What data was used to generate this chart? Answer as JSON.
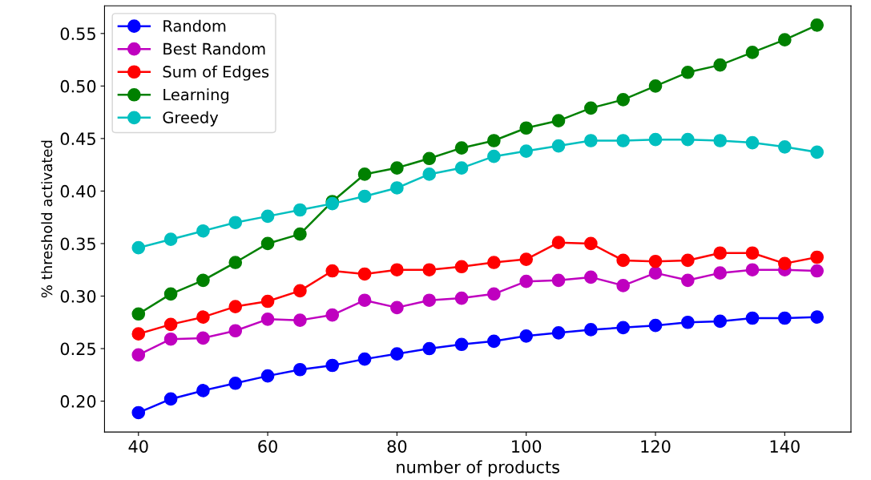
{
  "chart_data": {
    "type": "line",
    "xlabel": "number of products",
    "ylabel": "% threshold activated",
    "x": [
      40,
      45,
      50,
      55,
      60,
      65,
      70,
      75,
      80,
      85,
      90,
      95,
      100,
      105,
      110,
      115,
      120,
      125,
      130,
      135,
      140,
      145
    ],
    "series": [
      {
        "name": "Random",
        "color": "#0000ff",
        "values": [
          0.189,
          0.202,
          0.21,
          0.217,
          0.224,
          0.23,
          0.234,
          0.24,
          0.245,
          0.25,
          0.254,
          0.257,
          0.262,
          0.265,
          0.268,
          0.27,
          0.272,
          0.275,
          0.276,
          0.279,
          0.279,
          0.28
        ]
      },
      {
        "name": "Best Random",
        "color": "#bf00bf",
        "values": [
          0.244,
          0.259,
          0.26,
          0.267,
          0.278,
          0.277,
          0.282,
          0.296,
          0.289,
          0.296,
          0.298,
          0.302,
          0.314,
          0.315,
          0.318,
          0.31,
          0.322,
          0.315,
          0.322,
          0.325,
          0.325,
          0.324
        ]
      },
      {
        "name": "Sum of Edges",
        "color": "#ff0000",
        "values": [
          0.264,
          0.273,
          0.28,
          0.29,
          0.295,
          0.305,
          0.324,
          0.321,
          0.325,
          0.325,
          0.328,
          0.332,
          0.335,
          0.351,
          0.35,
          0.334,
          0.333,
          0.334,
          0.341,
          0.341,
          0.331,
          0.337
        ]
      },
      {
        "name": "Learning",
        "color": "#008000",
        "values": [
          0.283,
          0.302,
          0.315,
          0.332,
          0.35,
          0.359,
          0.39,
          0.416,
          0.422,
          0.431,
          0.441,
          0.448,
          0.46,
          0.467,
          0.479,
          0.487,
          0.5,
          0.513,
          0.52,
          0.532,
          0.544,
          0.558
        ]
      },
      {
        "name": "Greedy",
        "color": "#00bfbf",
        "values": [
          0.346,
          0.354,
          0.362,
          0.37,
          0.376,
          0.382,
          0.388,
          0.395,
          0.403,
          0.416,
          0.422,
          0.433,
          0.438,
          0.443,
          0.448,
          0.448,
          0.449,
          0.449,
          0.448,
          0.446,
          0.442,
          0.437
        ]
      }
    ],
    "xlim": [
      34.75,
      150.25
    ],
    "xticks": [
      40,
      60,
      80,
      100,
      120,
      140
    ],
    "ylim": [
      0.1706,
      0.5764
    ],
    "yticks": [
      {
        "value": 0.2,
        "label": "0.20"
      },
      {
        "value": 0.25,
        "label": "0.25"
      },
      {
        "value": 0.3,
        "label": "0.30"
      },
      {
        "value": 0.35,
        "label": "0.35"
      },
      {
        "value": 0.4,
        "label": "0.40"
      },
      {
        "value": 0.45,
        "label": "0.45"
      },
      {
        "value": 0.5,
        "label": "0.50"
      },
      {
        "value": 0.55,
        "label": "0.55"
      }
    ],
    "marker": "circle",
    "legend": "top left",
    "grid": false
  }
}
